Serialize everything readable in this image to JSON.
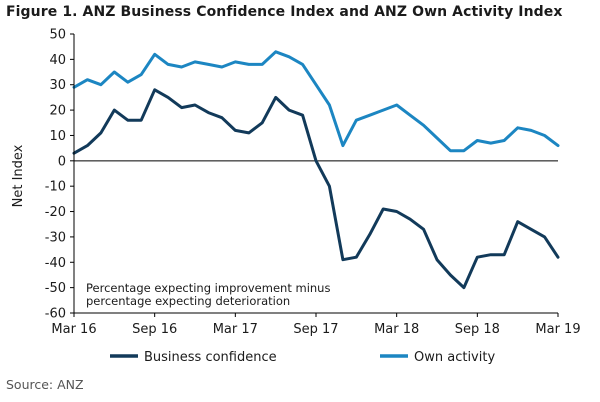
{
  "title": "Figure 1. ANZ Business Confidence Index and ANZ Own Activity Index",
  "source": "Source: ANZ",
  "colors": {
    "business": "#123a5a",
    "own": "#1c86c2",
    "axis": "#000000",
    "text": "#1b1b1b"
  },
  "chart_data": {
    "type": "line",
    "title": "ANZ Business Confidence Index and ANZ Own Activity Index",
    "xlabel": "",
    "ylabel": "Net Index",
    "ylim": [
      -60,
      50
    ],
    "yticks": [
      50,
      40,
      30,
      20,
      10,
      0,
      -10,
      -20,
      -30,
      -40,
      -50,
      -60
    ],
    "x_range": [
      0,
      36
    ],
    "x_ticks": [
      {
        "x": 0,
        "label": "Mar 16"
      },
      {
        "x": 6,
        "label": "Sep 16"
      },
      {
        "x": 12,
        "label": "Mar 17"
      },
      {
        "x": 18,
        "label": "Sep 17"
      },
      {
        "x": 24,
        "label": "Mar 18"
      },
      {
        "x": 30,
        "label": "Sep 18"
      },
      {
        "x": 36,
        "label": "Mar 19"
      }
    ],
    "grid": false,
    "legend_position": "bottom",
    "annotation": [
      "Percentage expecting improvement minus",
      "percentage expecting deterioration"
    ],
    "series": [
      {
        "name": "Business confidence",
        "color": "#123a5a",
        "x": [
          0,
          1,
          2,
          3,
          4,
          5,
          6,
          7,
          8,
          9,
          10,
          11,
          12,
          13,
          14,
          15,
          16,
          17,
          18,
          19,
          20,
          21,
          22,
          23,
          24,
          25,
          26,
          27,
          28,
          29,
          30,
          31,
          32,
          33,
          34,
          35,
          36
        ],
        "values": [
          3,
          6,
          11,
          20,
          16,
          16,
          28,
          25,
          21,
          22,
          19,
          17,
          12,
          11,
          15,
          25,
          20,
          18,
          0,
          -10,
          -39,
          -38,
          -29,
          -19,
          -20,
          -23,
          -27,
          -39,
          -45,
          -50,
          -38,
          -37,
          -37,
          -24,
          -27,
          -30,
          -38
        ]
      },
      {
        "name": "Own activity",
        "color": "#1c86c2",
        "x": [
          0,
          1,
          2,
          3,
          4,
          5,
          6,
          7,
          8,
          9,
          10,
          11,
          12,
          13,
          14,
          15,
          16,
          17,
          18,
          19,
          20,
          21,
          22,
          23,
          24,
          25,
          26,
          27,
          28,
          29,
          30,
          31,
          32,
          33,
          34,
          35,
          36
        ],
        "values": [
          29,
          32,
          30,
          35,
          31,
          34,
          42,
          38,
          37,
          39,
          38,
          37,
          39,
          38,
          38,
          43,
          41,
          38,
          30,
          22,
          6,
          16,
          18,
          20,
          22,
          18,
          14,
          9,
          4,
          4,
          8,
          7,
          8,
          13,
          12,
          10,
          6
        ]
      }
    ]
  }
}
